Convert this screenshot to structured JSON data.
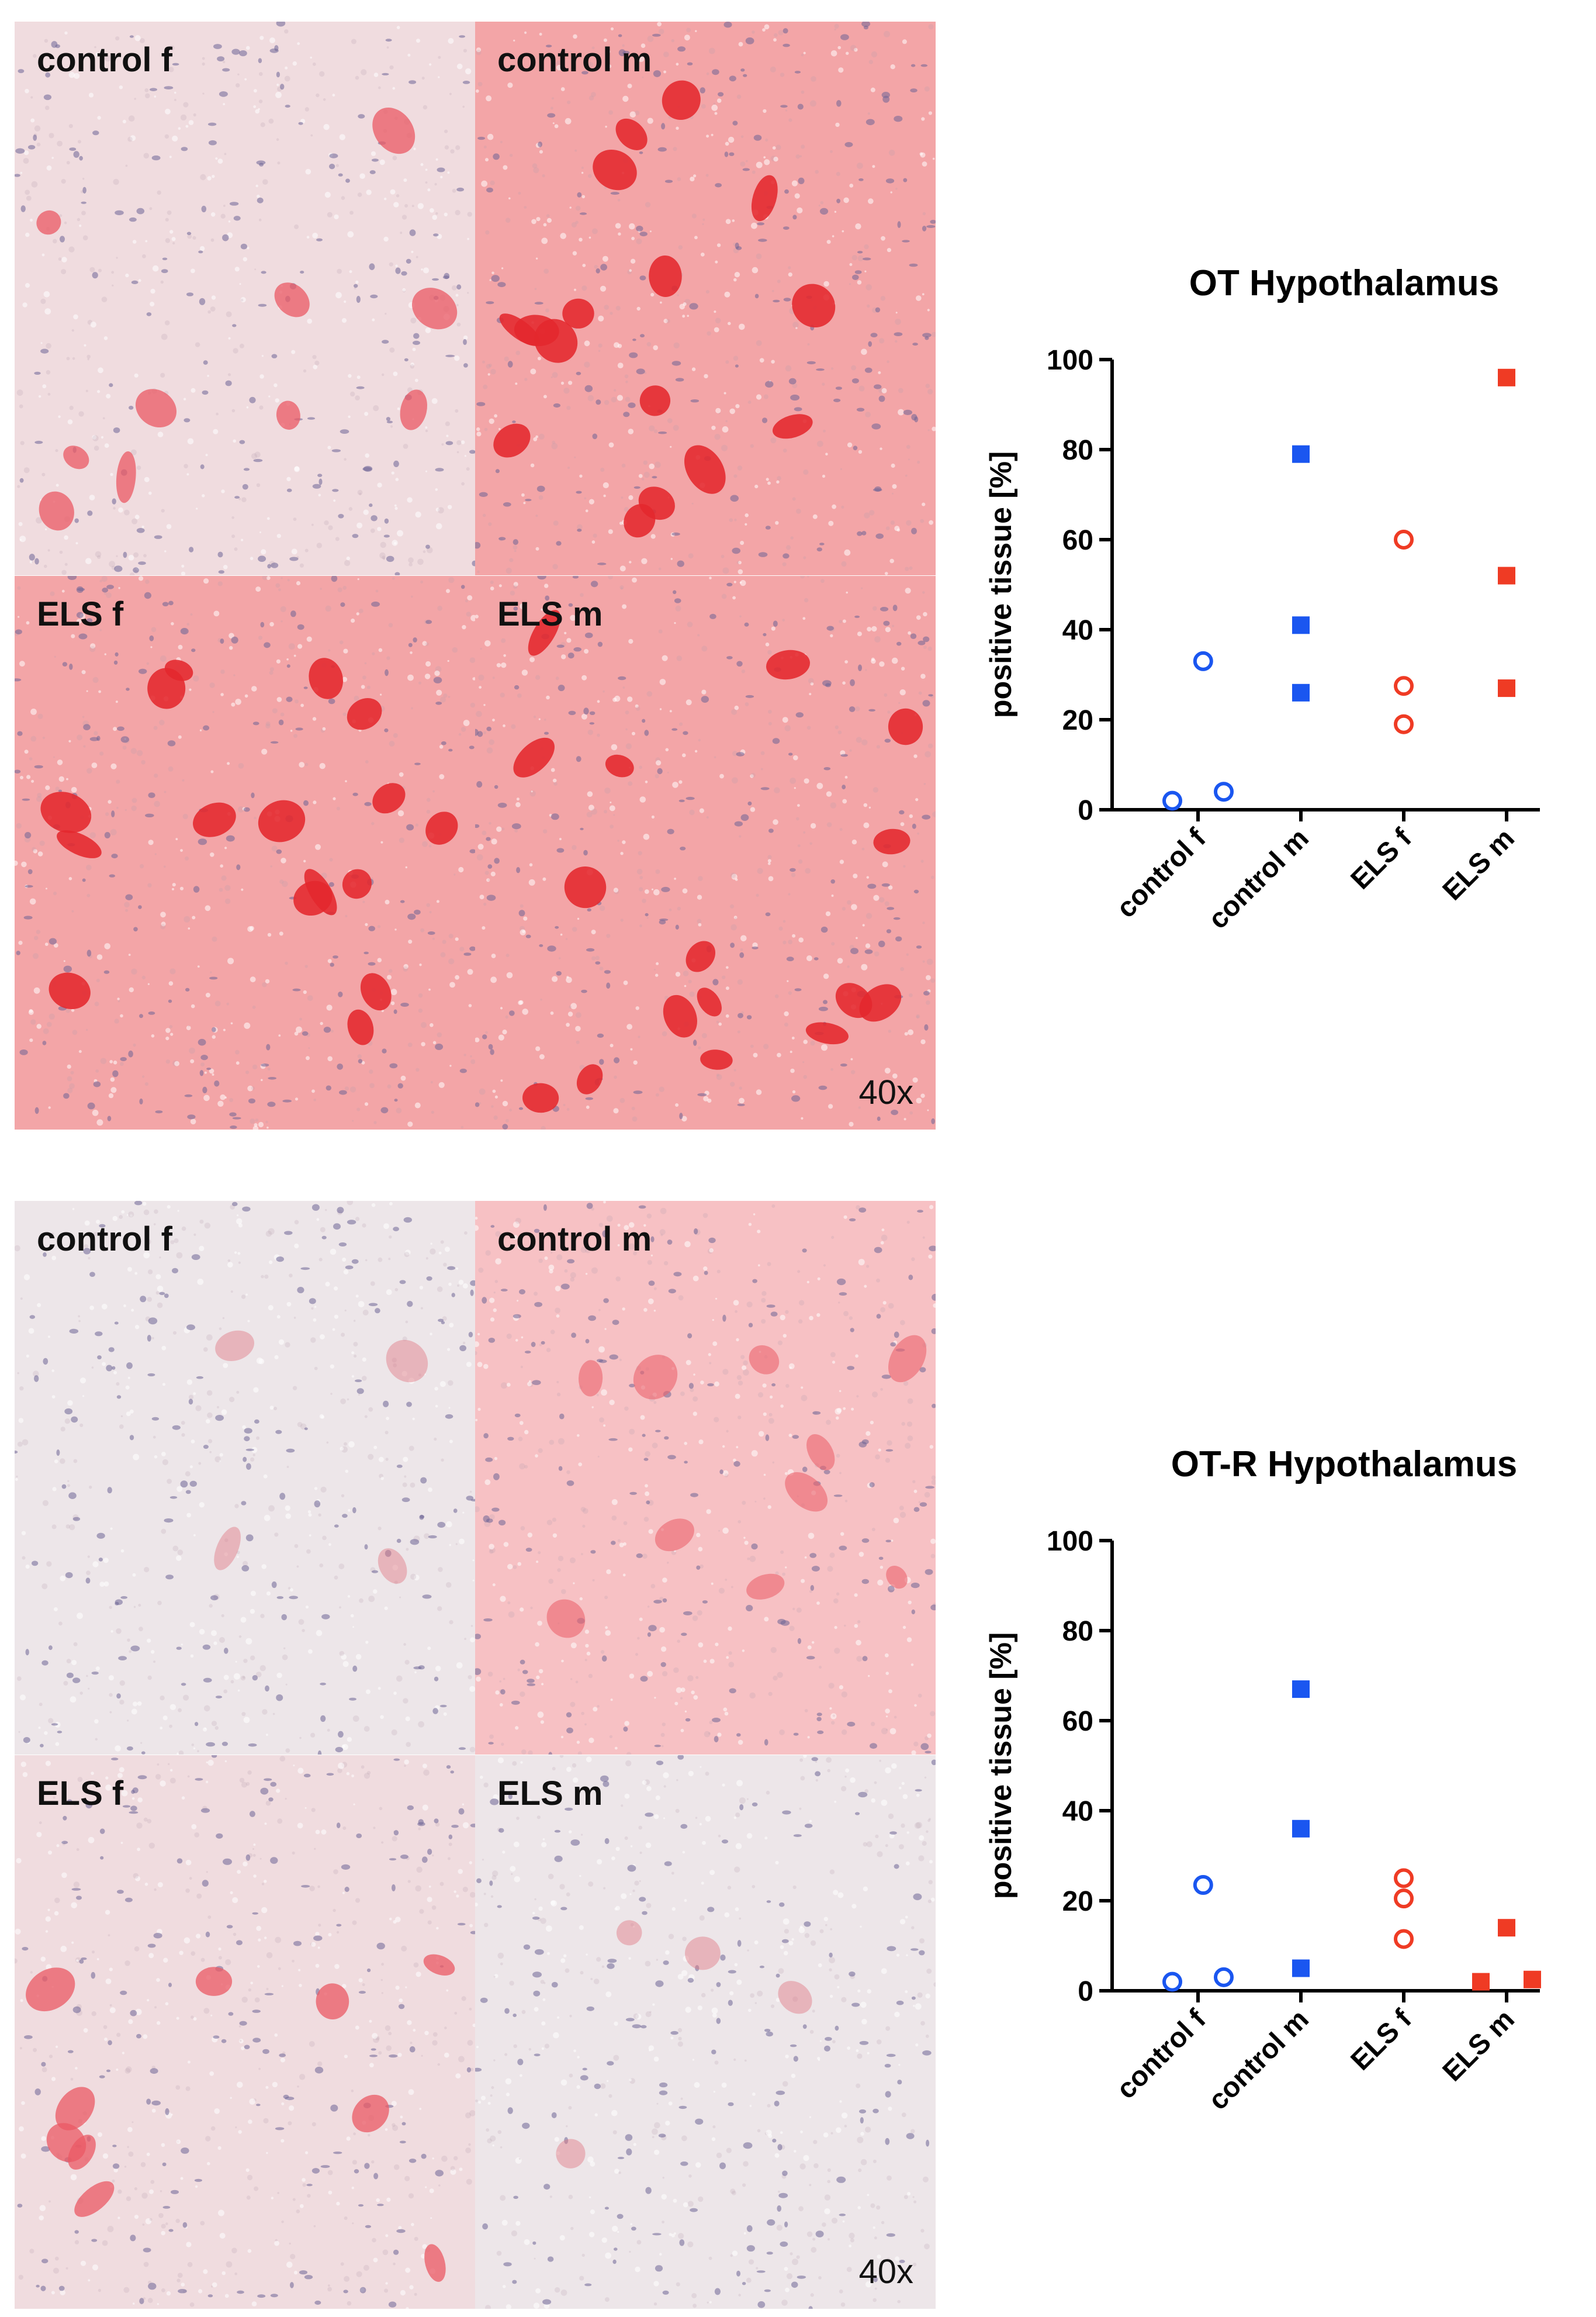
{
  "figures": [
    {
      "id": "top",
      "panels": [
        {
          "label": "control f",
          "stain": "light"
        },
        {
          "label": "control m",
          "stain": "strong"
        },
        {
          "label": "ELS f",
          "stain": "strong"
        },
        {
          "label": "ELS m",
          "stain": "strong"
        }
      ],
      "magnification": "40x"
    },
    {
      "id": "bottom",
      "panels": [
        {
          "label": "control f",
          "stain": "none"
        },
        {
          "label": "control m",
          "stain": "medium"
        },
        {
          "label": "ELS f",
          "stain": "light"
        },
        {
          "label": "ELS m",
          "stain": "none"
        }
      ],
      "magnification": "40x"
    }
  ],
  "chart_data": [
    {
      "type": "scatter",
      "title": "OT Hypothalamus",
      "xlabel": "",
      "ylabel": "positive tissue [%]",
      "ylim": [
        0,
        100
      ],
      "yticks": [
        0,
        20,
        40,
        60,
        80,
        100
      ],
      "categories": [
        "control f",
        "control m",
        "ELS f",
        "ELS m"
      ],
      "series": [
        {
          "name": "control f",
          "color": "#1a56f0",
          "marker": "open-circle",
          "points": [
            {
              "x": -0.25,
              "y": 2
            },
            {
              "x": 0.05,
              "y": 33
            },
            {
              "x": 0.25,
              "y": 4
            }
          ]
        },
        {
          "name": "control m",
          "color": "#1a56f0",
          "marker": "filled-square",
          "points": [
            {
              "x": 0,
              "y": 79
            },
            {
              "x": 0,
              "y": 41
            },
            {
              "x": 0,
              "y": 26
            }
          ]
        },
        {
          "name": "ELS f",
          "color": "#ef3b24",
          "marker": "open-circle",
          "points": [
            {
              "x": 0,
              "y": 60
            },
            {
              "x": 0,
              "y": 27.5
            },
            {
              "x": 0,
              "y": 19
            }
          ]
        },
        {
          "name": "ELS m",
          "color": "#ef3b24",
          "marker": "filled-square",
          "points": [
            {
              "x": 0,
              "y": 96
            },
            {
              "x": 0,
              "y": 52
            },
            {
              "x": 0,
              "y": 27
            }
          ]
        }
      ]
    },
    {
      "type": "scatter",
      "title": "OT-R Hypothalamus",
      "xlabel": "",
      "ylabel": "positive tissue [%]",
      "ylim": [
        0,
        100
      ],
      "yticks": [
        0,
        20,
        40,
        60,
        80,
        100
      ],
      "categories": [
        "control f",
        "control m",
        "ELS f",
        "ELS m"
      ],
      "series": [
        {
          "name": "control f",
          "color": "#1a56f0",
          "marker": "open-circle",
          "points": [
            {
              "x": -0.25,
              "y": 2
            },
            {
              "x": 0.05,
              "y": 23.5
            },
            {
              "x": 0.25,
              "y": 3
            }
          ]
        },
        {
          "name": "control m",
          "color": "#1a56f0",
          "marker": "filled-square",
          "points": [
            {
              "x": 0,
              "y": 67
            },
            {
              "x": 0,
              "y": 36
            },
            {
              "x": 0,
              "y": 5
            }
          ]
        },
        {
          "name": "ELS f",
          "color": "#ef3b24",
          "marker": "open-circle",
          "points": [
            {
              "x": 0,
              "y": 25
            },
            {
              "x": 0,
              "y": 20.5
            },
            {
              "x": 0,
              "y": 11.5
            }
          ]
        },
        {
          "name": "ELS m",
          "color": "#ef3b24",
          "marker": "filled-square",
          "points": [
            {
              "x": -0.25,
              "y": 2
            },
            {
              "x": 0,
              "y": 14
            },
            {
              "x": 0.25,
              "y": 2.5
            }
          ]
        }
      ]
    }
  ]
}
